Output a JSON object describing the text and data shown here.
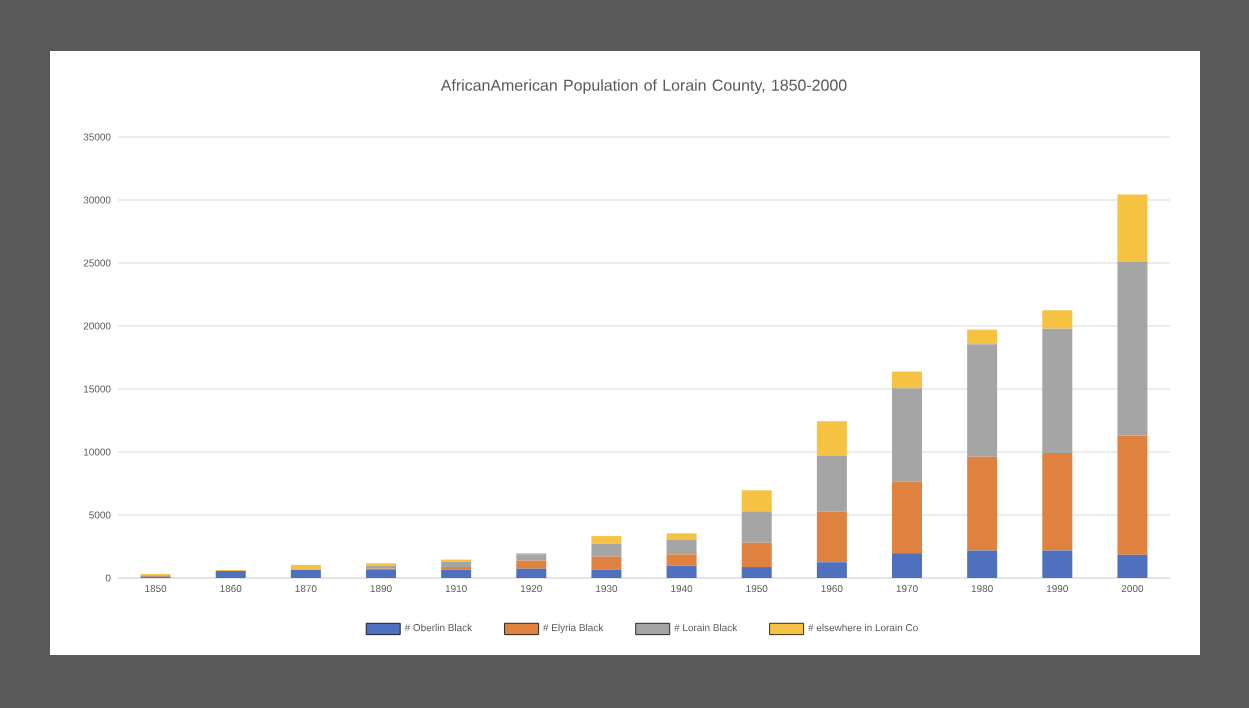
{
  "chart_data": {
    "type": "bar",
    "stacked": true,
    "title": "AfricanAmerican Population of Lorain County, 1850-2000",
    "categories": [
      "1850",
      "1860",
      "1870",
      "1890",
      "1910",
      "1920",
      "1930",
      "1940",
      "1950",
      "1960",
      "1970",
      "1980",
      "1990",
      "2000"
    ],
    "series": [
      {
        "name": "# Oberlin Black",
        "color": "#4f6fbf",
        "values": [
          100,
          560,
          640,
          640,
          660,
          740,
          660,
          980,
          870,
          1250,
          1970,
          2180,
          2180,
          1840
        ]
      },
      {
        "name": "# Elyria Black",
        "color": "#e0823f",
        "values": [
          100,
          0,
          0,
          100,
          210,
          640,
          1030,
          900,
          1930,
          4020,
          5690,
          7450,
          7740,
          9460
        ]
      },
      {
        "name": "# Lorain  Black",
        "color": "#a5a5a5",
        "values": [
          0,
          0,
          0,
          240,
          430,
          500,
          1030,
          1140,
          2490,
          4460,
          7390,
          8930,
          9870,
          13810
        ]
      },
      {
        "name": "# elsewhere in Lorain Co",
        "color": "#f5c242",
        "values": [
          120,
          80,
          400,
          190,
          160,
          100,
          610,
          520,
          1670,
          2720,
          1330,
          1150,
          1460,
          5320
        ]
      }
    ],
    "ylim": [
      0,
      35000
    ],
    "yticks": [
      0,
      5000,
      10000,
      15000,
      20000,
      25000,
      30000,
      35000
    ],
    "grid": "y",
    "legend": "bottom"
  }
}
